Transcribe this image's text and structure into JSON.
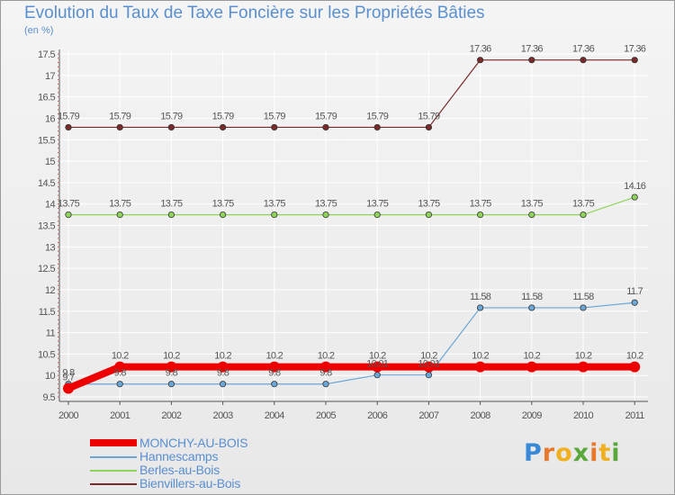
{
  "colors": {
    "title": "#5a8fd0",
    "axis": "#555555",
    "grid": "#ffffff"
  },
  "brand": {
    "letters": [
      "P",
      "r",
      "o",
      "x",
      "i",
      "t",
      "i"
    ],
    "colors": [
      "#3a88d8",
      "#e8782a",
      "#f0b020",
      "#58a83a",
      "#e8782a",
      "#f0b020",
      "#58a83a"
    ]
  },
  "chart_data": {
    "type": "line",
    "title": "Evolution du Taux de Taxe Foncière sur les Propriétés Bâties",
    "ylabel": "(en %)",
    "xlabel": "",
    "categories": [
      "2000",
      "2001",
      "2002",
      "2003",
      "2004",
      "2005",
      "2006",
      "2007",
      "2008",
      "2009",
      "2010",
      "2011"
    ],
    "ylim": [
      9.5,
      17.5
    ],
    "yticks": [
      "9.5",
      "10",
      "10.5",
      "11",
      "11.5",
      "12",
      "12.5",
      "13",
      "13.5",
      "14",
      "14.5",
      "15",
      "15.5",
      "16",
      "16.5",
      "17",
      "17.5"
    ],
    "grid": true,
    "legend_position": "bottom-left",
    "series": [
      {
        "name": "MONCHY-AU-BOIS",
        "color": "#ee0000",
        "values": [
          9.7,
          10.2,
          10.2,
          10.2,
          10.2,
          10.2,
          10.2,
          10.2,
          10.2,
          10.2,
          10.2,
          10.2
        ],
        "labels": [
          "9.7",
          "10.2",
          "10.2",
          "10.2",
          "10.2",
          "10.2",
          "10.2",
          "10.2",
          "10.2",
          "10.2",
          "10.2",
          "10.2"
        ]
      },
      {
        "name": "Hannescamps",
        "color": "#6aa6d6",
        "values": [
          9.8,
          9.8,
          9.8,
          9.8,
          9.8,
          9.8,
          10.01,
          10.01,
          11.58,
          11.58,
          11.58,
          11.7
        ],
        "labels": [
          "9.8",
          "9.8",
          "9.8",
          "9.8",
          "9.8",
          "9.8",
          "10.01",
          "10.01",
          "11.58",
          "11.58",
          "11.58",
          "11.7"
        ]
      },
      {
        "name": "Berles-au-Bois",
        "color": "#8fd45a",
        "values": [
          13.75,
          13.75,
          13.75,
          13.75,
          13.75,
          13.75,
          13.75,
          13.75,
          13.75,
          13.75,
          13.75,
          14.16
        ],
        "labels": [
          "13.75",
          "13.75",
          "13.75",
          "13.75",
          "13.75",
          "13.75",
          "13.75",
          "13.75",
          "13.75",
          "13.75",
          "13.75",
          "14.16"
        ]
      },
      {
        "name": "Bienvillers-au-Bois",
        "color": "#7a2a2a",
        "values": [
          15.79,
          15.79,
          15.79,
          15.79,
          15.79,
          15.79,
          15.79,
          15.79,
          17.36,
          17.36,
          17.36,
          17.36
        ],
        "labels": [
          "15.79",
          "15.79",
          "15.79",
          "15.79",
          "15.79",
          "15.79",
          "15.79",
          "15.79",
          "17.36",
          "17.36",
          "17.36",
          "17.36"
        ]
      }
    ]
  }
}
